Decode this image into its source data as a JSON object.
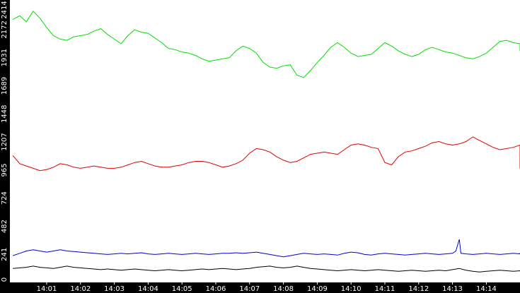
{
  "chart_data": {
    "type": "line",
    "title": "",
    "xlabel": "",
    "ylabel": "",
    "ylim": [
      0,
      2414
    ],
    "y_ticks": [
      "0",
      "241",
      "482",
      "724",
      "965",
      "1207",
      "1448",
      "1689",
      "1931",
      "2172",
      "2414"
    ],
    "x_ticks": [
      "14:01",
      "14:02",
      "14:03",
      "14:04",
      "14:05",
      "14:06",
      "14:07",
      "14:08",
      "14:09",
      "14:10",
      "14:11",
      "14:12",
      "14:13",
      "14:14"
    ],
    "grid": false,
    "series": [
      {
        "color": "#00e000",
        "points": [
          [
            0,
            2260
          ],
          [
            0.2,
            2290
          ],
          [
            0.4,
            2240
          ],
          [
            0.6,
            2330
          ],
          [
            0.8,
            2270
          ],
          [
            1.0,
            2190
          ],
          [
            1.2,
            2120
          ],
          [
            1.4,
            2090
          ],
          [
            1.6,
            2080
          ],
          [
            1.8,
            2110
          ],
          [
            2.0,
            2120
          ],
          [
            2.2,
            2130
          ],
          [
            2.4,
            2160
          ],
          [
            2.6,
            2180
          ],
          [
            2.8,
            2130
          ],
          [
            3.0,
            2090
          ],
          [
            3.2,
            2050
          ],
          [
            3.4,
            2120
          ],
          [
            3.6,
            2170
          ],
          [
            3.8,
            2150
          ],
          [
            4.0,
            2140
          ],
          [
            4.2,
            2100
          ],
          [
            4.4,
            2060
          ],
          [
            4.6,
            2010
          ],
          [
            4.8,
            2000
          ],
          [
            5.0,
            1980
          ],
          [
            5.2,
            1970
          ],
          [
            5.4,
            1950
          ],
          [
            5.6,
            1920
          ],
          [
            5.8,
            1900
          ],
          [
            6.0,
            1910
          ],
          [
            6.2,
            1920
          ],
          [
            6.4,
            1930
          ],
          [
            6.6,
            1990
          ],
          [
            6.8,
            2030
          ],
          [
            7.0,
            2010
          ],
          [
            7.2,
            1970
          ],
          [
            7.4,
            1890
          ],
          [
            7.6,
            1850
          ],
          [
            7.8,
            1840
          ],
          [
            8.0,
            1860
          ],
          [
            8.2,
            1870
          ],
          [
            8.4,
            1780
          ],
          [
            8.6,
            1760
          ],
          [
            8.8,
            1820
          ],
          [
            9.0,
            1890
          ],
          [
            9.2,
            1950
          ],
          [
            9.4,
            2020
          ],
          [
            9.6,
            2060
          ],
          [
            9.8,
            2020
          ],
          [
            10.0,
            1970
          ],
          [
            10.2,
            1940
          ],
          [
            10.4,
            1950
          ],
          [
            10.6,
            1960
          ],
          [
            10.8,
            2010
          ],
          [
            11.0,
            2060
          ],
          [
            11.2,
            2030
          ],
          [
            11.4,
            1990
          ],
          [
            11.6,
            1960
          ],
          [
            11.8,
            1940
          ],
          [
            12.0,
            1960
          ],
          [
            12.2,
            2000
          ],
          [
            12.4,
            2020
          ],
          [
            12.6,
            2000
          ],
          [
            12.8,
            1980
          ],
          [
            13.0,
            1970
          ],
          [
            13.2,
            1950
          ],
          [
            13.4,
            1930
          ],
          [
            13.6,
            1920
          ],
          [
            13.8,
            1940
          ],
          [
            14.0,
            1970
          ],
          [
            14.2,
            2020
          ],
          [
            14.4,
            2070
          ],
          [
            14.6,
            2080
          ],
          [
            14.8,
            2060
          ],
          [
            15.0,
            2050
          ],
          [
            15.2,
            2030
          ],
          [
            15.4,
            2000
          ],
          [
            15.6,
            1990
          ],
          [
            15.8,
            1990
          ]
        ]
      },
      {
        "color": "#e00000",
        "points": [
          [
            0,
            1090
          ],
          [
            0.2,
            1020
          ],
          [
            0.4,
            1000
          ],
          [
            0.6,
            980
          ],
          [
            0.8,
            960
          ],
          [
            1.0,
            970
          ],
          [
            1.2,
            990
          ],
          [
            1.4,
            1020
          ],
          [
            1.6,
            1010
          ],
          [
            1.8,
            990
          ],
          [
            2.0,
            980
          ],
          [
            2.2,
            990
          ],
          [
            2.4,
            1000
          ],
          [
            2.6,
            990
          ],
          [
            2.8,
            980
          ],
          [
            3.0,
            980
          ],
          [
            3.2,
            990
          ],
          [
            3.4,
            1010
          ],
          [
            3.6,
            1030
          ],
          [
            3.8,
            1040
          ],
          [
            4.0,
            1020
          ],
          [
            4.2,
            1000
          ],
          [
            4.4,
            990
          ],
          [
            4.6,
            990
          ],
          [
            4.8,
            1000
          ],
          [
            5.0,
            1010
          ],
          [
            5.2,
            1030
          ],
          [
            5.4,
            1040
          ],
          [
            5.6,
            1040
          ],
          [
            5.8,
            1030
          ],
          [
            6.0,
            1010
          ],
          [
            6.2,
            990
          ],
          [
            6.4,
            1000
          ],
          [
            6.6,
            1020
          ],
          [
            6.8,
            1050
          ],
          [
            7.0,
            1110
          ],
          [
            7.2,
            1150
          ],
          [
            7.4,
            1140
          ],
          [
            7.6,
            1120
          ],
          [
            7.8,
            1080
          ],
          [
            8.0,
            1050
          ],
          [
            8.2,
            1030
          ],
          [
            8.4,
            1040
          ],
          [
            8.6,
            1070
          ],
          [
            8.8,
            1100
          ],
          [
            9.0,
            1110
          ],
          [
            9.2,
            1120
          ],
          [
            9.4,
            1110
          ],
          [
            9.6,
            1100
          ],
          [
            9.8,
            1140
          ],
          [
            10.0,
            1180
          ],
          [
            10.2,
            1190
          ],
          [
            10.4,
            1180
          ],
          [
            10.6,
            1160
          ],
          [
            10.8,
            1150
          ],
          [
            11.0,
            1030
          ],
          [
            11.2,
            1010
          ],
          [
            11.4,
            1080
          ],
          [
            11.6,
            1120
          ],
          [
            11.8,
            1130
          ],
          [
            12.0,
            1150
          ],
          [
            12.2,
            1170
          ],
          [
            12.4,
            1200
          ],
          [
            12.6,
            1210
          ],
          [
            12.8,
            1190
          ],
          [
            13.0,
            1180
          ],
          [
            13.2,
            1190
          ],
          [
            13.4,
            1210
          ],
          [
            13.6,
            1250
          ],
          [
            13.8,
            1220
          ],
          [
            14.0,
            1190
          ],
          [
            14.2,
            1160
          ],
          [
            14.4,
            1140
          ],
          [
            14.6,
            1150
          ],
          [
            14.8,
            1160
          ],
          [
            15.0,
            1180
          ],
          [
            15.2,
            1130
          ],
          [
            15.4,
            1090
          ],
          [
            15.6,
            1030
          ],
          [
            15.8,
            980
          ]
        ]
      },
      {
        "color": "#0000d0",
        "points": [
          [
            0,
            230
          ],
          [
            0.2,
            250
          ],
          [
            0.4,
            270
          ],
          [
            0.6,
            280
          ],
          [
            0.8,
            270
          ],
          [
            1.0,
            260
          ],
          [
            1.2,
            270
          ],
          [
            1.4,
            280
          ],
          [
            1.6,
            270
          ],
          [
            1.8,
            265
          ],
          [
            2.0,
            260
          ],
          [
            2.2,
            255
          ],
          [
            2.4,
            250
          ],
          [
            2.6,
            245
          ],
          [
            2.8,
            240
          ],
          [
            3.0,
            245
          ],
          [
            3.2,
            250
          ],
          [
            3.4,
            245
          ],
          [
            3.6,
            250
          ],
          [
            3.8,
            255
          ],
          [
            4.0,
            245
          ],
          [
            4.2,
            240
          ],
          [
            4.4,
            245
          ],
          [
            4.6,
            250
          ],
          [
            4.8,
            245
          ],
          [
            5.0,
            240
          ],
          [
            5.2,
            245
          ],
          [
            5.4,
            250
          ],
          [
            5.6,
            245
          ],
          [
            5.8,
            240
          ],
          [
            6.0,
            245
          ],
          [
            6.2,
            250
          ],
          [
            6.4,
            250
          ],
          [
            6.6,
            255
          ],
          [
            6.8,
            250
          ],
          [
            7.0,
            255
          ],
          [
            7.2,
            260
          ],
          [
            7.4,
            250
          ],
          [
            7.6,
            240
          ],
          [
            7.8,
            230
          ],
          [
            8.0,
            220
          ],
          [
            8.2,
            230
          ],
          [
            8.4,
            240
          ],
          [
            8.6,
            250
          ],
          [
            8.8,
            245
          ],
          [
            9.0,
            240
          ],
          [
            9.2,
            245
          ],
          [
            9.4,
            240
          ],
          [
            9.6,
            235
          ],
          [
            9.8,
            250
          ],
          [
            10.0,
            260
          ],
          [
            10.2,
            255
          ],
          [
            10.4,
            240
          ],
          [
            10.6,
            235
          ],
          [
            10.8,
            245
          ],
          [
            11.0,
            250
          ],
          [
            11.2,
            245
          ],
          [
            11.4,
            240
          ],
          [
            11.6,
            235
          ],
          [
            11.8,
            240
          ],
          [
            12.0,
            245
          ],
          [
            12.2,
            250
          ],
          [
            12.4,
            245
          ],
          [
            12.6,
            240
          ],
          [
            12.8,
            245
          ],
          [
            13.0,
            250
          ],
          [
            13.1,
            270
          ],
          [
            13.2,
            370
          ],
          [
            13.25,
            250
          ],
          [
            13.4,
            245
          ],
          [
            13.6,
            240
          ],
          [
            13.8,
            245
          ],
          [
            14.0,
            250
          ],
          [
            14.2,
            245
          ],
          [
            14.4,
            240
          ],
          [
            14.6,
            245
          ],
          [
            14.8,
            250
          ],
          [
            15.0,
            245
          ],
          [
            15.2,
            250
          ],
          [
            15.4,
            255
          ],
          [
            15.6,
            245
          ],
          [
            15.8,
            250
          ]
        ]
      },
      {
        "color": "#000000",
        "points": [
          [
            0,
            120
          ],
          [
            0.2,
            125
          ],
          [
            0.4,
            130
          ],
          [
            0.6,
            140
          ],
          [
            0.8,
            130
          ],
          [
            1.0,
            125
          ],
          [
            1.2,
            120
          ],
          [
            1.4,
            130
          ],
          [
            1.6,
            140
          ],
          [
            1.8,
            130
          ],
          [
            2.0,
            125
          ],
          [
            2.2,
            120
          ],
          [
            2.4,
            115
          ],
          [
            2.6,
            110
          ],
          [
            2.8,
            115
          ],
          [
            3.0,
            110
          ],
          [
            3.2,
            105
          ],
          [
            3.4,
            110
          ],
          [
            3.6,
            115
          ],
          [
            3.8,
            110
          ],
          [
            4.0,
            105
          ],
          [
            4.2,
            100
          ],
          [
            4.4,
            105
          ],
          [
            4.6,
            110
          ],
          [
            4.8,
            105
          ],
          [
            5.0,
            100
          ],
          [
            5.2,
            105
          ],
          [
            5.4,
            110
          ],
          [
            5.6,
            115
          ],
          [
            5.8,
            110
          ],
          [
            6.0,
            115
          ],
          [
            6.2,
            120
          ],
          [
            6.4,
            115
          ],
          [
            6.6,
            110
          ],
          [
            6.8,
            115
          ],
          [
            7.0,
            120
          ],
          [
            7.2,
            130
          ],
          [
            7.4,
            135
          ],
          [
            7.6,
            140
          ],
          [
            7.8,
            130
          ],
          [
            8.0,
            125
          ],
          [
            8.2,
            130
          ],
          [
            8.4,
            140
          ],
          [
            8.6,
            130
          ],
          [
            8.8,
            120
          ],
          [
            9.0,
            115
          ],
          [
            9.2,
            110
          ],
          [
            9.4,
            105
          ],
          [
            9.6,
            100
          ],
          [
            9.8,
            105
          ],
          [
            10.0,
            110
          ],
          [
            10.2,
            105
          ],
          [
            10.4,
            100
          ],
          [
            10.6,
            105
          ],
          [
            10.8,
            110
          ],
          [
            11.0,
            105
          ],
          [
            11.2,
            100
          ],
          [
            11.4,
            95
          ],
          [
            11.6,
            100
          ],
          [
            11.8,
            105
          ],
          [
            12.0,
            100
          ],
          [
            12.2,
            95
          ],
          [
            12.4,
            100
          ],
          [
            12.6,
            105
          ],
          [
            12.8,
            100
          ],
          [
            13.0,
            110
          ],
          [
            13.2,
            120
          ],
          [
            13.4,
            105
          ],
          [
            13.6,
            95
          ],
          [
            13.8,
            90
          ],
          [
            14.0,
            95
          ],
          [
            14.2,
            100
          ],
          [
            14.4,
            105
          ],
          [
            14.6,
            100
          ],
          [
            14.8,
            95
          ],
          [
            15.0,
            100
          ],
          [
            15.2,
            105
          ],
          [
            15.4,
            100
          ],
          [
            15.6,
            95
          ],
          [
            15.8,
            100
          ]
        ]
      }
    ]
  }
}
